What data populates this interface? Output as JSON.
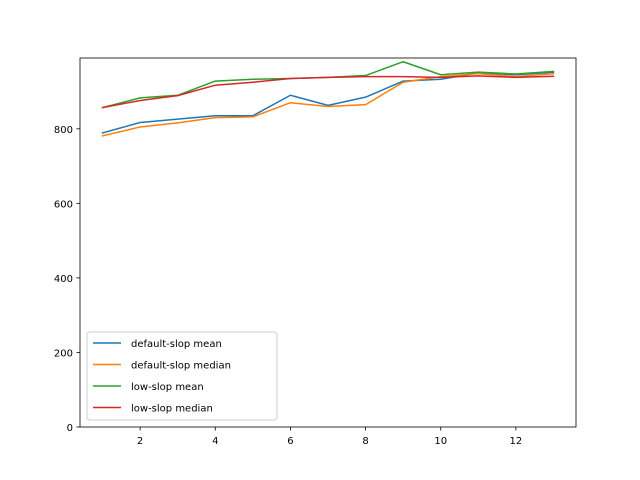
{
  "chart_data": {
    "type": "line",
    "title": "",
    "xlabel": "",
    "ylabel": "",
    "xlim": [
      0.4,
      13.6
    ],
    "ylim": [
      0,
      990
    ],
    "xticks": [
      2,
      4,
      6,
      8,
      10,
      12
    ],
    "yticks": [
      0,
      200,
      400,
      600,
      800
    ],
    "grid": false,
    "legend_position": "lower-left",
    "x": [
      1,
      2,
      3,
      4,
      5,
      6,
      7,
      8,
      9,
      10,
      11,
      12,
      13
    ],
    "series": [
      {
        "name": "default-slop mean",
        "color": "#1f77b4",
        "values": [
          789,
          817,
          826,
          835,
          835,
          890,
          863,
          885,
          928,
          933,
          950,
          945,
          952
        ]
      },
      {
        "name": "default-slop median",
        "color": "#ff7f0e",
        "values": [
          781,
          805,
          816,
          830,
          832,
          870,
          860,
          865,
          925,
          940,
          948,
          940,
          948
        ]
      },
      {
        "name": "low-slop mean",
        "color": "#2ca02c",
        "values": [
          857,
          883,
          890,
          928,
          933,
          935,
          938,
          943,
          980,
          945,
          952,
          947,
          954
        ]
      },
      {
        "name": "low-slop median",
        "color": "#d62728",
        "values": [
          857,
          876,
          889,
          917,
          925,
          935,
          938,
          940,
          940,
          938,
          942,
          938,
          941
        ]
      }
    ]
  }
}
